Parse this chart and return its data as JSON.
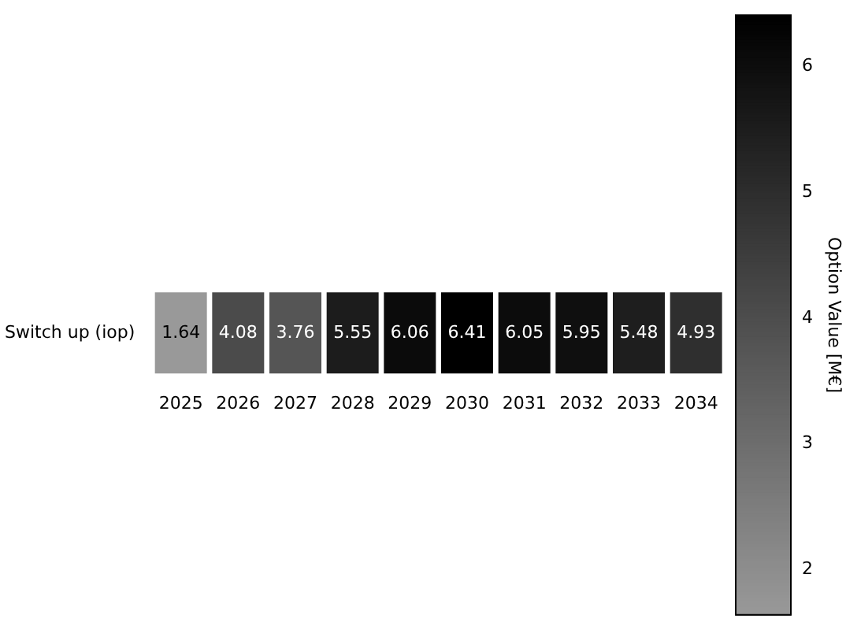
{
  "chart_data": {
    "type": "heatmap",
    "categories": [
      "2025",
      "2026",
      "2027",
      "2028",
      "2029",
      "2030",
      "2031",
      "2032",
      "2033",
      "2034"
    ],
    "y_categories": [
      "Switch up (iop)"
    ],
    "cells": [
      [
        1.64,
        4.08,
        3.76,
        5.55,
        6.06,
        6.41,
        6.05,
        5.95,
        5.48,
        4.93
      ]
    ],
    "data_labels": true,
    "clabel": "Option Value [M€]",
    "clim": [
      1.64,
      6.41
    ],
    "cticks": [
      2,
      3,
      4,
      5,
      6
    ]
  }
}
